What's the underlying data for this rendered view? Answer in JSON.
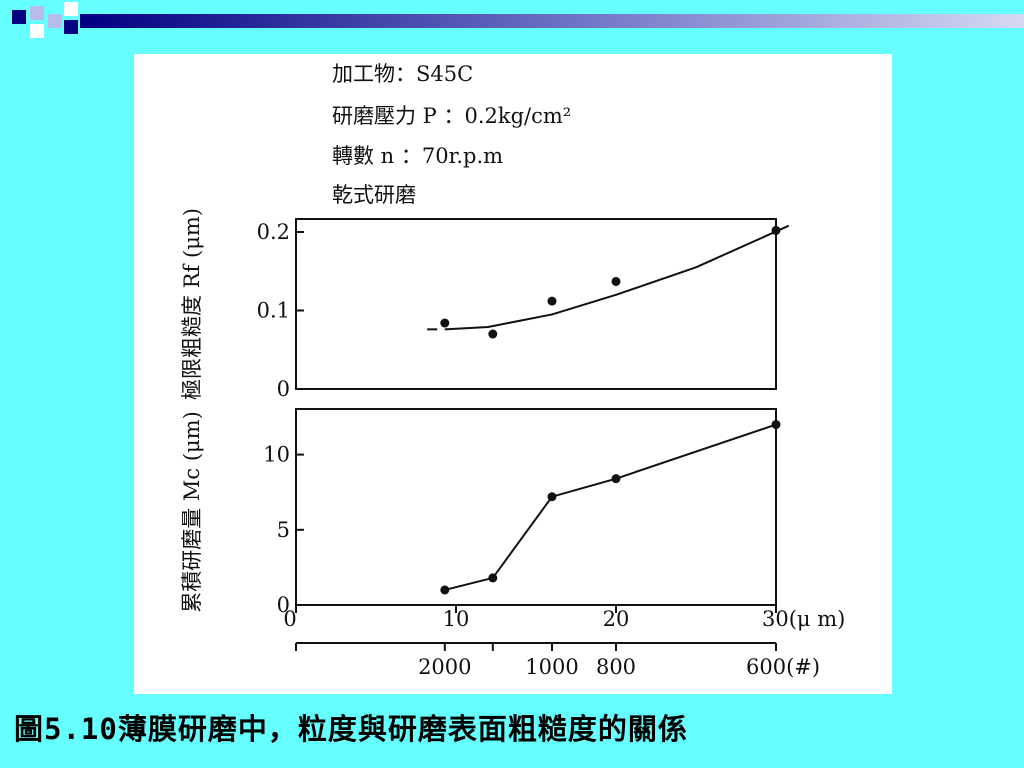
{
  "colors": {
    "background": "#66ffff",
    "panel": "#ffffff",
    "header_navy": "#000080",
    "header_light": "#b8bce8",
    "ink": "#111111"
  },
  "conditions": [
    "加工物：S45C",
    "研磨壓力 P ：0.2kg/cm²",
    "轉數 n ：70r.p.m",
    "乾式研磨"
  ],
  "chart_data": [
    {
      "type": "line",
      "markers": true,
      "ylabel": "極限粗糙度 Rf (μm)",
      "ylim": [
        0,
        0.2
      ],
      "yticks": [
        "0",
        "0.1",
        "0.2"
      ],
      "xlim": [
        0,
        30
      ],
      "points": [
        {
          "x": 9.3,
          "y": 0.084
        },
        {
          "x": 12.3,
          "y": 0.07
        },
        {
          "x": 16.0,
          "y": 0.112
        },
        {
          "x": 20.0,
          "y": 0.137
        },
        {
          "x": 30.0,
          "y": 0.202
        }
      ],
      "curve": [
        {
          "x": 8.2,
          "y": 0.076
        },
        {
          "x": 9.3,
          "y": 0.076
        },
        {
          "x": 12,
          "y": 0.079
        },
        {
          "x": 16,
          "y": 0.095
        },
        {
          "x": 20,
          "y": 0.12
        },
        {
          "x": 25,
          "y": 0.155
        },
        {
          "x": 30.8,
          "y": 0.208
        }
      ]
    },
    {
      "type": "line",
      "markers": true,
      "ylabel": "累積研磨量 Mc (μm)",
      "ylim": [
        0,
        12.5
      ],
      "yticks": [
        "0",
        "5",
        "10"
      ],
      "xlim": [
        0,
        30
      ],
      "points": [
        {
          "x": 9.3,
          "y": 1.0
        },
        {
          "x": 12.3,
          "y": 1.8
        },
        {
          "x": 16.0,
          "y": 7.2
        },
        {
          "x": 20.0,
          "y": 8.4
        },
        {
          "x": 30.0,
          "y": 12.0
        }
      ],
      "x_axis_labels": [
        "0",
        "10",
        "20",
        "30(μ m)"
      ],
      "x_axis_ticks": [
        0,
        10,
        20,
        30
      ],
      "mesh_labels": [
        {
          "x": 9.3,
          "label": "2000"
        },
        {
          "x": 16.0,
          "label": "1000"
        },
        {
          "x": 20.0,
          "label": "800"
        },
        {
          "x": 30.0,
          "label": "600(#)"
        }
      ],
      "mesh_ticks": [
        0,
        9.3,
        12.3,
        16.0,
        20.0,
        30.0
      ]
    }
  ],
  "caption": "圖5.10薄膜研磨中，粒度與研磨表面粗糙度的關係"
}
